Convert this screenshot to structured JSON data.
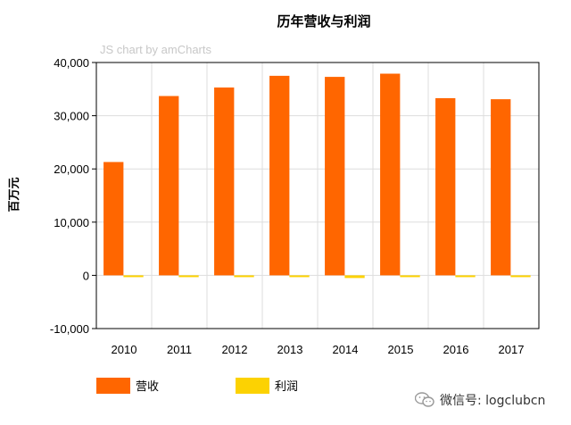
{
  "chart_data": {
    "type": "bar",
    "title": "历年营收与利润",
    "credit": "JS chart by amCharts",
    "ylabel": "百万元",
    "xlabel": "",
    "ylim": [
      -10000,
      40000
    ],
    "y_ticks": [
      "-10,000",
      "0",
      "10,000",
      "20,000",
      "30,000",
      "40,000"
    ],
    "grid": true,
    "legend_position": "bottom-left",
    "categories": [
      "2010",
      "2011",
      "2012",
      "2013",
      "2014",
      "2015",
      "2016",
      "2017"
    ],
    "series": [
      {
        "name": "营收",
        "color": "#ff6600",
        "values": [
          21300,
          33700,
          35300,
          37500,
          37300,
          37900,
          33300,
          33100
        ]
      },
      {
        "name": "利润",
        "color": "#fcd202",
        "values": [
          -100,
          -100,
          -50,
          -250,
          -500,
          -150,
          -200,
          -250
        ]
      }
    ]
  },
  "watermark": {
    "icon": "wechat-icon",
    "text": "微信号: logclubcn"
  }
}
